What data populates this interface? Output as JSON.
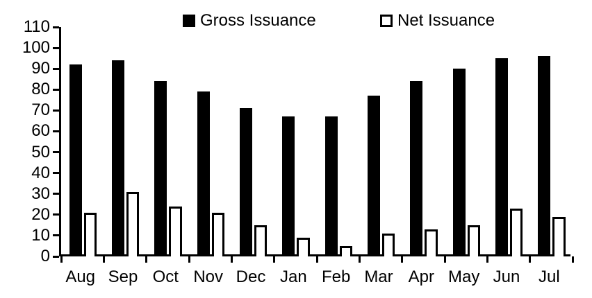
{
  "chart_data": {
    "type": "bar",
    "title": "",
    "xlabel": "",
    "ylabel": "",
    "categories": [
      "Aug",
      "Sep",
      "Oct",
      "Nov",
      "Dec",
      "Jan",
      "Feb",
      "Mar",
      "Apr",
      "May",
      "Jun",
      "Jul"
    ],
    "series": [
      {
        "name": "Gross Issuance",
        "swatch": "filled-black-square",
        "fill": "#000000",
        "stroke": "#000000",
        "values": [
          92,
          94,
          84,
          79,
          71,
          67,
          67,
          77,
          84,
          90,
          95,
          96
        ]
      },
      {
        "name": "Net Issuance",
        "swatch": "outlined-white-square",
        "fill": "#ffffff",
        "stroke": "#000000",
        "values": [
          21,
          31,
          24,
          21,
          15,
          9,
          5,
          11,
          13,
          15,
          23,
          19
        ]
      }
    ],
    "ylim": [
      0,
      110
    ],
    "ytick_step": 10,
    "y_tick_labels": [
      "0",
      "10",
      "20",
      "30",
      "40",
      "50",
      "60",
      "70",
      "80",
      "90",
      "100",
      "110"
    ],
    "grid": false,
    "legend_position": "top",
    "colors": {
      "axis": "#000000",
      "text": "#000000",
      "background": "#ffffff"
    }
  }
}
